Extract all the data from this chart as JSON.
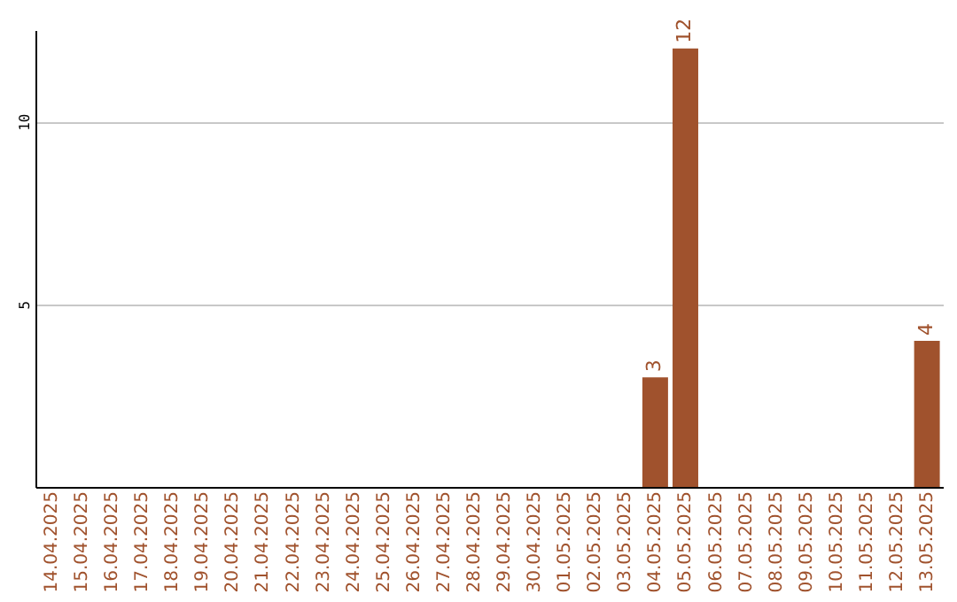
{
  "chart_data": {
    "type": "bar",
    "categories": [
      "14.04.2025",
      "15.04.2025",
      "16.04.2025",
      "17.04.2025",
      "18.04.2025",
      "19.04.2025",
      "20.04.2025",
      "21.04.2025",
      "22.04.2025",
      "23.04.2025",
      "24.04.2025",
      "25.04.2025",
      "26.04.2025",
      "27.04.2025",
      "28.04.2025",
      "29.04.2025",
      "30.04.2025",
      "01.05.2025",
      "02.05.2025",
      "03.05.2025",
      "04.05.2025",
      "05.05.2025",
      "06.05.2025",
      "07.05.2025",
      "08.05.2025",
      "09.05.2025",
      "10.05.2025",
      "11.05.2025",
      "12.05.2025",
      "13.05.2025"
    ],
    "values": [
      0,
      0,
      0,
      0,
      0,
      0,
      0,
      0,
      0,
      0,
      0,
      0,
      0,
      0,
      0,
      0,
      0,
      0,
      0,
      0,
      3,
      12,
      0,
      0,
      0,
      0,
      0,
      0,
      0,
      4
    ],
    "value_labels": [
      null,
      null,
      null,
      null,
      null,
      null,
      null,
      null,
      null,
      null,
      null,
      null,
      null,
      null,
      null,
      null,
      null,
      null,
      null,
      null,
      "3",
      "12",
      null,
      null,
      null,
      null,
      null,
      null,
      null,
      "4"
    ],
    "color": "#a0522d",
    "ylim": [
      0,
      12.5
    ],
    "yticks": [
      5,
      10
    ],
    "grid": "y"
  }
}
